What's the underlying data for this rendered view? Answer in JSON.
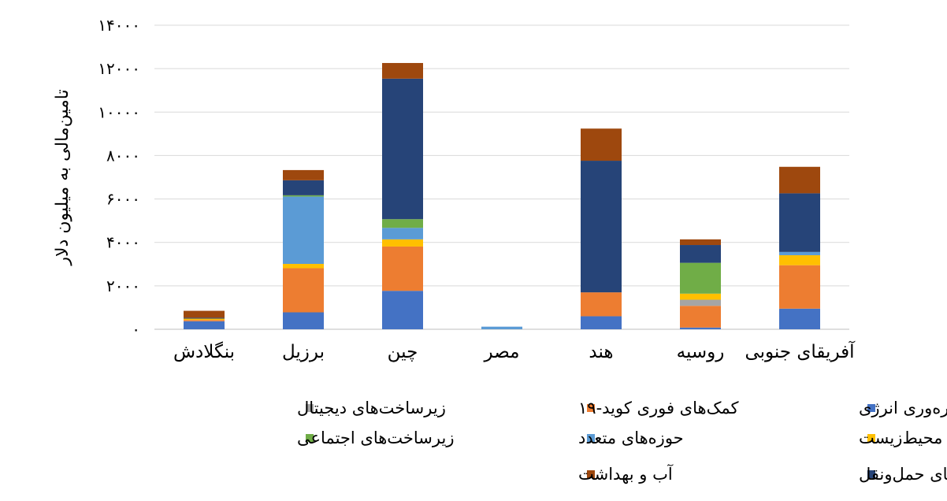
{
  "chart_data": {
    "type": "bar",
    "stacked": true,
    "title": "",
    "xlabel": "",
    "ylabel": "تامین‌مالی به میلیون دلار",
    "ylim": [
      0,
      14000
    ],
    "yticks": [
      0,
      2000,
      4000,
      6000,
      8000,
      10000,
      12000,
      14000
    ],
    "ytick_labels": [
      "۰",
      "۲۰۰۰",
      "۴۰۰۰",
      "۶۰۰۰",
      "۸۰۰۰",
      "۱۰۰۰۰",
      "۱۲۰۰۰",
      "۱۴۰۰۰"
    ],
    "grid": true,
    "legend_position": "bottom",
    "categories": [
      "بنگلادش",
      "برزیل",
      "چین",
      "مصر",
      "هند",
      "روسیه",
      "آفریقای جنوبی"
    ],
    "series": [
      {
        "name": "انرژی پاک و بهره‌وری انرژی",
        "color": "#4472C4",
        "values": [
          370,
          780,
          1770,
          0,
          600,
          80,
          950
        ]
      },
      {
        "name": "حفاظت از محیط‌زیست",
        "color": "#FFC000",
        "values": [
          60,
          200,
          330,
          0,
          0,
          280,
          460
        ]
      },
      {
        "name": "زیرساخت‌های حمل‌ونقل",
        "color": "#264478",
        "values": [
          40,
          690,
          6470,
          0,
          6060,
          820,
          2700
        ]
      },
      {
        "name": "کمک‌های فوری کوید-۱۹",
        "color": "#ED7D31",
        "values": [
          60,
          2030,
          2040,
          0,
          1100,
          1000,
          2000
        ]
      },
      {
        "name": "حوزه‌های متعدد",
        "color": "#5B9BD5",
        "values": [
          0,
          3100,
          530,
          120,
          0,
          0,
          150
        ]
      },
      {
        "name": "آب و بهداشت",
        "color": "#9E480E",
        "values": [
          320,
          470,
          720,
          0,
          1480,
          260,
          1220
        ]
      },
      {
        "name": "زیرساخت‌های دیجیتال",
        "color": "#A5A5A5",
        "values": [
          0,
          0,
          0,
          0,
          0,
          280,
          0
        ]
      },
      {
        "name": "زیرساخت‌های اجتماعی",
        "color": "#70AD47",
        "values": [
          0,
          60,
          400,
          0,
          0,
          1420,
          0
        ]
      }
    ],
    "stack_order": [
      "انرژی پاک و بهره‌وری انرژی",
      "کمک‌های فوری کوید-۱۹",
      "زیرساخت‌های دیجیتال",
      "حفاظت از محیط‌زیست",
      "حوزه‌های متعدد",
      "زیرساخت‌های اجتماعی",
      "زیرساخت‌های حمل‌ونقل",
      "آب و بهداشت"
    ]
  }
}
